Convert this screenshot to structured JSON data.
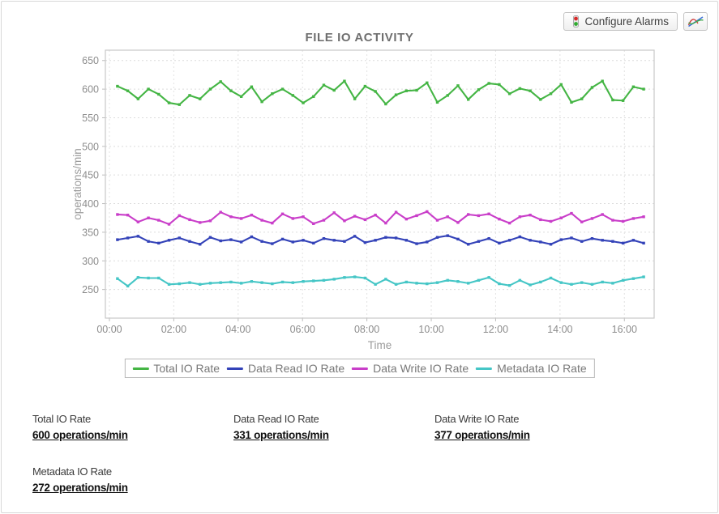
{
  "toolbar": {
    "configure_alarms_label": "Configure Alarms"
  },
  "chart_data": {
    "type": "line",
    "title": "FILE IO ACTIVITY",
    "xlabel": "Time",
    "ylabel": "operations/min",
    "ylim": [
      200,
      668
    ],
    "yticks": [
      250,
      300,
      350,
      400,
      450,
      500,
      550,
      600,
      650
    ],
    "xticks": [
      "00:00",
      "02:00",
      "04:00",
      "06:00",
      "08:00",
      "10:00",
      "12:00",
      "14:00",
      "16:00"
    ],
    "xtick_hours": [
      0,
      2,
      4,
      6,
      8,
      10,
      12,
      14,
      16
    ],
    "x_span_hours": [
      0.25,
      16.6
    ],
    "sample_interval_min": 20,
    "grid": true,
    "legend_position": "bottom",
    "series": [
      {
        "name": "Total IO Rate",
        "color": "#44b544",
        "values": [
          605,
          597,
          583,
          600,
          591,
          576,
          573,
          589,
          583,
          600,
          613,
          597,
          587,
          604,
          578,
          592,
          600,
          589,
          576,
          587,
          607,
          598,
          614,
          583,
          605,
          596,
          574,
          590,
          597,
          598,
          611,
          577,
          589,
          606,
          582,
          599,
          610,
          608,
          592,
          601,
          597,
          582,
          592,
          608,
          577,
          583,
          603,
          614,
          581,
          580,
          604,
          600
        ]
      },
      {
        "name": "Data Read IO Rate",
        "color": "#3342b8",
        "values": [
          337,
          340,
          343,
          334,
          331,
          336,
          340,
          334,
          329,
          341,
          335,
          337,
          333,
          342,
          334,
          330,
          338,
          333,
          336,
          331,
          339,
          336,
          334,
          343,
          332,
          336,
          341,
          340,
          336,
          330,
          333,
          341,
          344,
          338,
          329,
          334,
          339,
          331,
          336,
          342,
          336,
          333,
          329,
          337,
          340,
          334,
          339,
          336,
          334,
          331,
          336,
          331
        ]
      },
      {
        "name": "Data Write IO Rate",
        "color": "#c93ec9",
        "values": [
          381,
          380,
          368,
          375,
          371,
          364,
          379,
          372,
          367,
          370,
          385,
          377,
          374,
          380,
          371,
          366,
          382,
          374,
          377,
          365,
          371,
          384,
          370,
          378,
          372,
          380,
          366,
          385,
          373,
          379,
          386,
          371,
          377,
          367,
          381,
          379,
          382,
          373,
          366,
          377,
          380,
          372,
          369,
          375,
          383,
          368,
          374,
          381,
          371,
          369,
          374,
          377
        ]
      },
      {
        "name": "Metadata IO Rate",
        "color": "#45c6c6",
        "values": [
          269,
          256,
          271,
          270,
          270,
          259,
          260,
          262,
          259,
          261,
          262,
          263,
          261,
          264,
          262,
          260,
          263,
          262,
          264,
          265,
          266,
          268,
          271,
          272,
          270,
          259,
          268,
          259,
          263,
          261,
          260,
          262,
          266,
          264,
          261,
          266,
          271,
          260,
          257,
          266,
          258,
          263,
          270,
          262,
          259,
          262,
          259,
          263,
          261,
          266,
          269,
          272
        ]
      }
    ]
  },
  "stats": [
    {
      "label": "Total IO Rate",
      "value": "600 operations/min"
    },
    {
      "label": "Data Read IO Rate",
      "value": "331 operations/min"
    },
    {
      "label": "Data Write IO Rate",
      "value": "377 operations/min"
    },
    {
      "label": "Metadata IO Rate",
      "value": "272 operations/min"
    }
  ]
}
